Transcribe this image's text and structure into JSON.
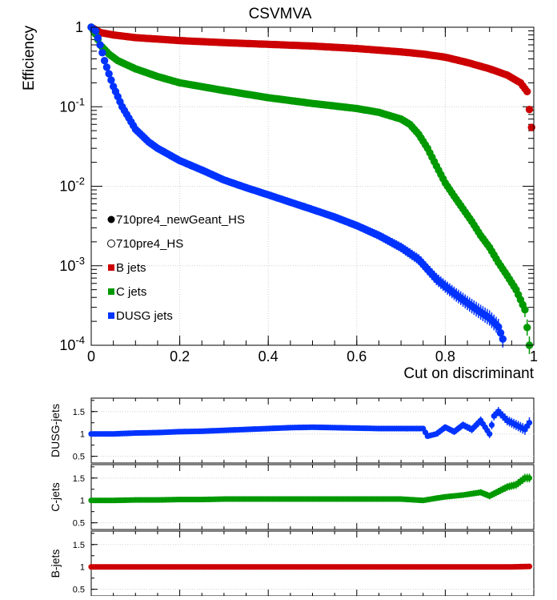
{
  "colors": {
    "b": "#cc0000",
    "c": "#009900",
    "dusg": "#0033ff"
  },
  "chart_data": [
    {
      "type": "scatter",
      "title": "CSVMVA",
      "xlabel": "Cut on discriminant",
      "ylabel": "Efficiency",
      "xlim": [
        0,
        1
      ],
      "ylim": [
        0.0001,
        1
      ],
      "yscale": "log",
      "grid": true,
      "x_ticks": [
        "0",
        "0.2",
        "0.4",
        "0.6",
        "0.8",
        "1"
      ],
      "y_ticks": [
        {
          "v": 0.0001,
          "base": "10",
          "exp": "-4"
        },
        {
          "v": 0.001,
          "base": "10",
          "exp": "-3"
        },
        {
          "v": 0.01,
          "base": "10",
          "exp": "-2"
        },
        {
          "v": 0.1,
          "base": "10",
          "exp": "-1"
        },
        {
          "v": 1,
          "base": "1",
          "exp": ""
        }
      ],
      "legend_position": "bottom-left",
      "legend": [
        {
          "label": "710pre4_newGeant_HS",
          "marker": "filled-circle"
        },
        {
          "label": "710pre4_HS",
          "marker": "open-circle"
        },
        {
          "label": "B jets",
          "marker": "square-red"
        },
        {
          "label": "C jets",
          "marker": "square-green"
        },
        {
          "label": "DUSG jets",
          "marker": "square-blue"
        }
      ],
      "series": [
        {
          "name": "B jets",
          "x": [
            0,
            0.02,
            0.05,
            0.1,
            0.2,
            0.3,
            0.4,
            0.5,
            0.6,
            0.7,
            0.75,
            0.8,
            0.85,
            0.9,
            0.94,
            0.97,
            0.985,
            0.995
          ],
          "y": [
            1.0,
            0.86,
            0.8,
            0.74,
            0.68,
            0.64,
            0.61,
            0.58,
            0.54,
            0.49,
            0.46,
            0.42,
            0.36,
            0.3,
            0.25,
            0.2,
            0.155,
            0.055
          ]
        },
        {
          "name": "C jets",
          "x": [
            0,
            0.01,
            0.02,
            0.04,
            0.06,
            0.1,
            0.15,
            0.2,
            0.3,
            0.4,
            0.5,
            0.6,
            0.65,
            0.7,
            0.72,
            0.74,
            0.76,
            0.78,
            0.8,
            0.82,
            0.84,
            0.86,
            0.88,
            0.9,
            0.92,
            0.94,
            0.96,
            0.98,
            0.99
          ],
          "y": [
            1.0,
            0.82,
            0.6,
            0.46,
            0.38,
            0.3,
            0.24,
            0.2,
            0.16,
            0.13,
            0.11,
            0.095,
            0.085,
            0.07,
            0.06,
            0.045,
            0.03,
            0.018,
            0.011,
            0.0075,
            0.0052,
            0.0036,
            0.0024,
            0.0017,
            0.0011,
            0.00075,
            0.0005,
            0.00028,
            0.0001
          ]
        },
        {
          "name": "DUSG jets",
          "x": [
            0,
            0.01,
            0.02,
            0.03,
            0.04,
            0.05,
            0.07,
            0.1,
            0.13,
            0.15,
            0.2,
            0.25,
            0.3,
            0.35,
            0.4,
            0.45,
            0.5,
            0.55,
            0.6,
            0.65,
            0.7,
            0.74,
            0.76,
            0.78,
            0.8,
            0.82,
            0.85,
            0.88,
            0.9,
            0.92,
            0.93
          ],
          "y": [
            1.0,
            0.9,
            0.6,
            0.38,
            0.26,
            0.18,
            0.1,
            0.052,
            0.036,
            0.03,
            0.021,
            0.016,
            0.012,
            0.0096,
            0.0078,
            0.0063,
            0.0051,
            0.0041,
            0.0032,
            0.0024,
            0.0017,
            0.0012,
            0.0009,
            0.00068,
            0.00055,
            0.00045,
            0.00034,
            0.00026,
            0.00022,
            0.00017,
            0.00012
          ]
        }
      ]
    },
    {
      "type": "scatter",
      "ylabel": "DUSG-jets",
      "xlim": [
        0,
        1
      ],
      "ylim": [
        0.35,
        1.8
      ],
      "y_ticks": [
        "1.5",
        "1",
        "0.5"
      ],
      "series": [
        {
          "x": [
            0,
            0.05,
            0.1,
            0.15,
            0.2,
            0.25,
            0.3,
            0.35,
            0.4,
            0.45,
            0.5,
            0.55,
            0.6,
            0.65,
            0.7,
            0.75,
            0.76,
            0.78,
            0.8,
            0.82,
            0.84,
            0.86,
            0.88,
            0.9,
            0.91,
            0.92,
            0.94,
            0.96,
            0.98,
            0.99
          ],
          "y": [
            1.0,
            1.0,
            1.02,
            1.03,
            1.05,
            1.06,
            1.08,
            1.1,
            1.12,
            1.14,
            1.15,
            1.14,
            1.13,
            1.12,
            1.12,
            1.12,
            0.95,
            1.0,
            1.15,
            1.05,
            1.2,
            1.1,
            1.3,
            1.0,
            1.4,
            1.5,
            1.3,
            1.2,
            1.1,
            1.25
          ]
        }
      ]
    },
    {
      "type": "scatter",
      "ylabel": "C-jets",
      "xlim": [
        0,
        1
      ],
      "ylim": [
        0.35,
        1.8
      ],
      "y_ticks": [
        "1.5",
        "1",
        "0.5"
      ],
      "series": [
        {
          "x": [
            0,
            0.05,
            0.1,
            0.15,
            0.2,
            0.25,
            0.3,
            0.35,
            0.4,
            0.45,
            0.5,
            0.55,
            0.6,
            0.65,
            0.7,
            0.75,
            0.78,
            0.8,
            0.82,
            0.84,
            0.86,
            0.88,
            0.9,
            0.92,
            0.94,
            0.96,
            0.98,
            0.99
          ],
          "y": [
            1.0,
            1.0,
            1.01,
            1.01,
            1.02,
            1.02,
            1.03,
            1.03,
            1.03,
            1.03,
            1.03,
            1.03,
            1.03,
            1.03,
            1.03,
            1.0,
            1.05,
            1.08,
            1.1,
            1.12,
            1.15,
            1.18,
            1.1,
            1.2,
            1.3,
            1.35,
            1.5,
            1.5
          ]
        }
      ]
    },
    {
      "type": "scatter",
      "ylabel": "B-jets",
      "xlim": [
        0,
        1
      ],
      "ylim": [
        0.35,
        1.8
      ],
      "y_ticks": [
        "1.5",
        "1",
        "0.5"
      ],
      "series": [
        {
          "x": [
            0,
            0.1,
            0.2,
            0.3,
            0.4,
            0.5,
            0.6,
            0.7,
            0.8,
            0.9,
            0.95,
            0.99
          ],
          "y": [
            1.0,
            1.0,
            1.0,
            1.0,
            1.0,
            1.0,
            1.0,
            1.0,
            1.0,
            1.0,
            1.0,
            1.01
          ]
        }
      ]
    }
  ]
}
